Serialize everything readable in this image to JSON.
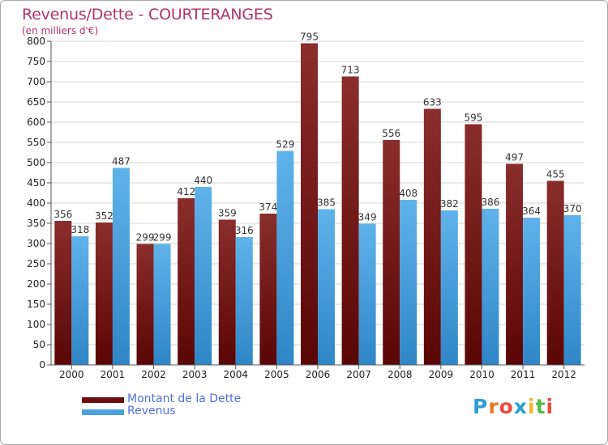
{
  "header": {
    "title": "Revenus/Dette - COURTERANGES",
    "subtitle": "(en milliers d'€)"
  },
  "legend": {
    "dette_label": "Montant de la Dette",
    "revenus_label": "Revenus"
  },
  "brand": {
    "name": "Proxiti",
    "letters": [
      "P",
      "r",
      "o",
      "x",
      "i",
      "t",
      "i"
    ],
    "colors": [
      "#2a9fd6",
      "#e87722",
      "#e84c3d",
      "#2a9fd6",
      "#f2b632",
      "#56b947",
      "#e84c3d"
    ]
  },
  "colors": {
    "dette": "#7a1a1a",
    "revenus": "#4aa3e0",
    "grid": "#d4d4d4",
    "axis": "#555555"
  },
  "chart_data": {
    "type": "bar",
    "title": "Revenus/Dette - COURTERANGES",
    "ylabel": "(en milliers d'€)",
    "xlabel": "",
    "ylim": [
      0,
      800
    ],
    "ytick_step": 50,
    "grid": true,
    "legend_position": "bottom-left",
    "categories": [
      "2000",
      "2001",
      "2002",
      "2003",
      "2004",
      "2005",
      "2006",
      "2007",
      "2008",
      "2009",
      "2010",
      "2011",
      "2012"
    ],
    "series": [
      {
        "name": "Montant de la Dette",
        "values": [
          356,
          352,
          299,
          412,
          359,
          374,
          795,
          713,
          556,
          633,
          595,
          497,
          455
        ]
      },
      {
        "name": "Revenus",
        "values": [
          318,
          487,
          299,
          440,
          316,
          529,
          385,
          349,
          408,
          382,
          386,
          364,
          370
        ]
      }
    ]
  }
}
